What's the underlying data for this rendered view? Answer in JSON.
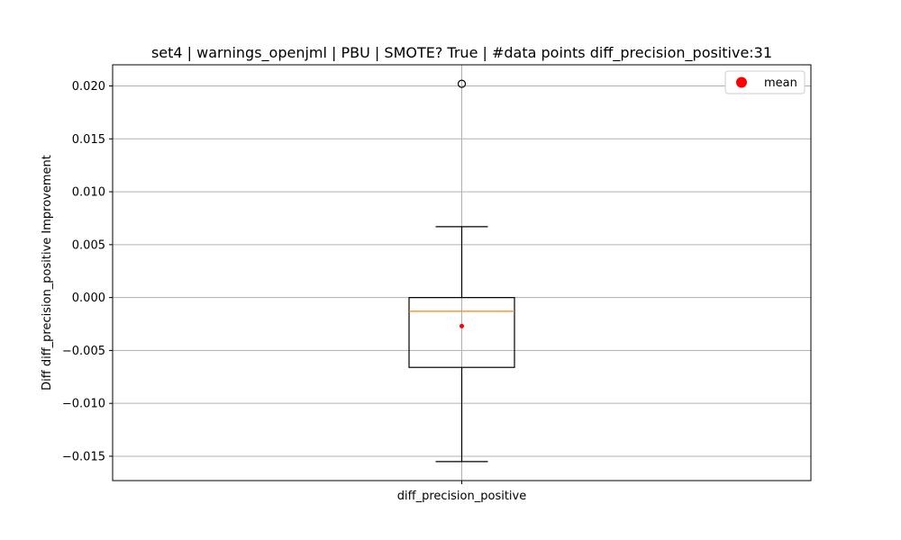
{
  "chart_data": {
    "type": "box",
    "title": "set4 | warnings_openjml | PBU | SMOTE? True | #data points diff_precision_positive:31",
    "xlabel": "",
    "ylabel": "Diff diff_precision_positive Improvement",
    "categories": [
      "diff_precision_positive"
    ],
    "ylim": [
      -0.0173,
      0.022
    ],
    "yticks": [
      0.02,
      0.015,
      0.01,
      0.005,
      0.0,
      -0.005,
      -0.01,
      -0.015
    ],
    "ytick_labels": [
      "0.020",
      "0.015",
      "0.010",
      "0.005",
      "0.000",
      "−0.005",
      "−0.010",
      "−0.015"
    ],
    "grid": true,
    "legend_position": "top-right",
    "legend": [
      {
        "label": "mean",
        "color": "#ff0000"
      }
    ],
    "boxes": [
      {
        "name": "diff_precision_positive",
        "whisker_low": -0.0155,
        "q1": -0.0066,
        "median": -0.0013,
        "q3": 0.0,
        "whisker_high": 0.0067,
        "mean": -0.0027,
        "outliers": [
          0.0202
        ]
      }
    ],
    "colors": {
      "box": "#000000",
      "median": "#ff7f0e",
      "mean": "#ff0000",
      "grid": "#b0b0b0"
    }
  }
}
